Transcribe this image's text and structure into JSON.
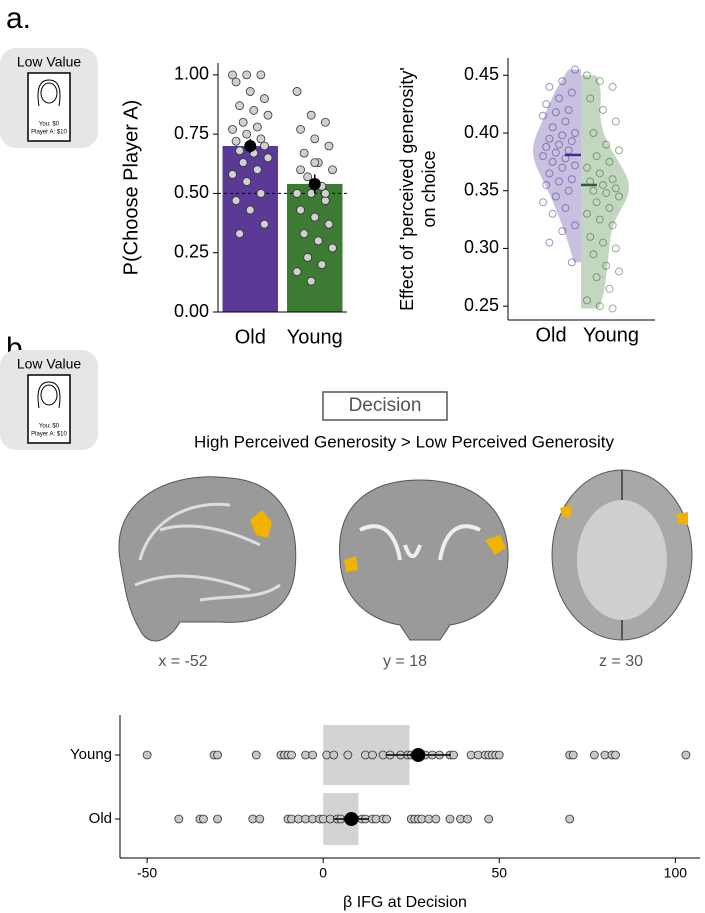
{
  "panel_labels": [
    "a.",
    "b."
  ],
  "cards": [
    {
      "title": "Low Value",
      "you": "You: $0",
      "player": "Player A: $10"
    },
    {
      "title": "Low Value",
      "you": "You: $0",
      "player": "Player A: $10"
    }
  ],
  "decision_label": "Decision",
  "contrast_title": "High Perceived Generosity > Low Perceived Generosity",
  "slice_labels": [
    "x = -52",
    "y = 18",
    "z = 30"
  ],
  "chart_data": [
    {
      "type": "bar",
      "ylabel": "P(Choose Player A)",
      "categories": [
        "Old",
        "Young"
      ],
      "values": [
        0.7,
        0.54
      ],
      "errors": [
        0.03,
        0.04
      ],
      "colors": [
        "#5b3a96",
        "#3d7a33"
      ],
      "hline": 0.5,
      "ylim": [
        0,
        1.05
      ],
      "yticks": [
        {
          "value": 0,
          "label": "0.00"
        },
        {
          "value": 0.25,
          "label": "0.25"
        },
        {
          "value": 0.5,
          "label": "0.50"
        },
        {
          "value": 0.75,
          "label": "0.75"
        },
        {
          "value": 1,
          "label": "1.00"
        }
      ],
      "points": [
        [
          1.0,
          1.0,
          1.0,
          0.97,
          0.93,
          0.9,
          0.87,
          0.85,
          0.83,
          0.8,
          0.78,
          0.77,
          0.75,
          0.73,
          0.72,
          0.7,
          0.7,
          0.68,
          0.67,
          0.65,
          0.63,
          0.6,
          0.58,
          0.55,
          0.5,
          0.47,
          0.43,
          0.37,
          0.33
        ],
        [
          0.93,
          0.83,
          0.8,
          0.77,
          0.73,
          0.7,
          0.67,
          0.63,
          0.6,
          0.57,
          0.53,
          0.5,
          0.5,
          0.47,
          0.43,
          0.4,
          0.37,
          0.33,
          0.3,
          0.27,
          0.23,
          0.2,
          0.17,
          0.13,
          0.5,
          0.6,
          0.63
        ]
      ]
    },
    {
      "type": "violin",
      "ylabel": [
        "Effect of 'perceived generosity'",
        "on choice"
      ],
      "categories": [
        "Old",
        "Young"
      ],
      "means": [
        0.381,
        0.355
      ],
      "colors": [
        "#c9bfde",
        "#c3d6c0"
      ],
      "line_colors": [
        "#3b2f8f",
        "#2e5e2a"
      ],
      "ylim": [
        0.238,
        0.465
      ],
      "yticks": [
        0.25,
        {
          "value": 0.3,
          "label": "0.30"
        },
        0.35,
        {
          "value": 0.4,
          "label": "0.40"
        },
        0.45
      ],
      "points": [
        [
          0.455,
          0.445,
          0.44,
          0.435,
          0.43,
          0.425,
          0.42,
          0.418,
          0.415,
          0.41,
          0.405,
          0.4,
          0.398,
          0.395,
          0.393,
          0.39,
          0.388,
          0.385,
          0.383,
          0.38,
          0.378,
          0.375,
          0.372,
          0.37,
          0.365,
          0.36,
          0.358,
          0.355,
          0.35,
          0.345,
          0.34,
          0.335,
          0.33,
          0.32,
          0.315,
          0.305,
          0.288
        ],
        [
          0.45,
          0.445,
          0.44,
          0.43,
          0.42,
          0.41,
          0.4,
          0.39,
          0.385,
          0.38,
          0.375,
          0.37,
          0.365,
          0.36,
          0.358,
          0.355,
          0.352,
          0.35,
          0.348,
          0.345,
          0.34,
          0.335,
          0.33,
          0.325,
          0.32,
          0.31,
          0.305,
          0.3,
          0.295,
          0.285,
          0.28,
          0.275,
          0.265,
          0.255,
          0.25,
          0.248
        ]
      ]
    },
    {
      "type": "dot",
      "xlabel": "β IFG at Decision",
      "categories": [
        "Young",
        "Old"
      ],
      "values": [
        24.5,
        10
      ],
      "means": [
        27,
        8
      ],
      "errors": [
        9.3,
        5
      ],
      "color": "#d3d3d3",
      "xlim": [
        -57.7,
        107
      ],
      "xticks": [
        -50,
        0,
        50,
        100
      ],
      "points": [
        [
          -50,
          -31,
          -30,
          -19,
          -12,
          -11,
          -10,
          -9,
          -5,
          -3,
          1,
          3,
          7,
          12,
          14,
          17,
          19,
          22,
          24,
          25,
          26,
          29,
          31,
          33,
          36,
          37,
          42,
          44,
          46,
          47,
          48,
          49,
          50,
          70,
          71,
          77,
          80,
          82,
          83,
          103
        ],
        [
          -41,
          -35,
          -34,
          -30,
          -20,
          -18,
          -10,
          -9,
          -7,
          -5,
          -3,
          -1,
          0,
          2,
          4,
          5,
          7,
          9,
          11,
          12,
          14,
          15,
          17,
          18,
          25,
          26,
          27,
          28,
          30,
          32,
          36,
          39,
          41,
          47,
          70
        ]
      ]
    }
  ]
}
